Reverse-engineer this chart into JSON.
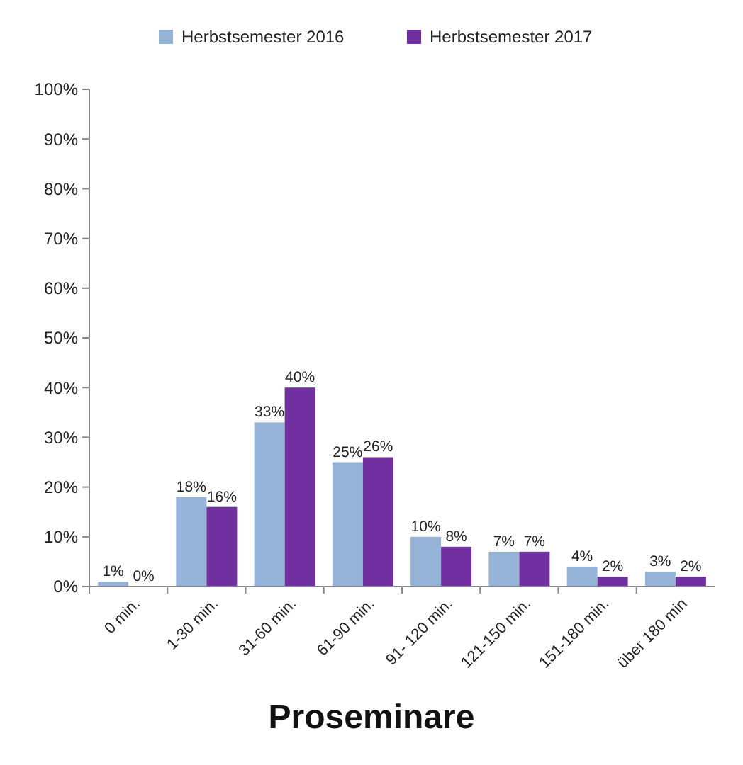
{
  "chart_data": {
    "type": "bar",
    "title": "Proseminare",
    "categories": [
      "0 min.",
      "1-30 min.",
      "31-60 min.",
      "61-90 min.",
      "91- 120 min.",
      "121-150 min.",
      "151-180 min.",
      "über 180 min"
    ],
    "series": [
      {
        "name": "Herbstsemester 2016",
        "color": "#95b3d7",
        "values": [
          1,
          18,
          33,
          25,
          10,
          7,
          4,
          3
        ],
        "value_labels": [
          "1%",
          "18%",
          "33%",
          "25%",
          "10%",
          "7%",
          "4%",
          "3%"
        ]
      },
      {
        "name": "Herbstsemester 2017",
        "color": "#7030a0",
        "values": [
          0,
          16,
          40,
          26,
          8,
          7,
          2,
          2
        ],
        "value_labels": [
          "0%",
          "16%",
          "40%",
          "26%",
          "8%",
          "7%",
          "2%",
          "2%"
        ]
      }
    ],
    "ylim": [
      0,
      100
    ],
    "yticks": [
      {
        "value": 0,
        "label": "0%"
      },
      {
        "value": 10,
        "label": "10%"
      },
      {
        "value": 20,
        "label": "20%"
      },
      {
        "value": 30,
        "label": "30%"
      },
      {
        "value": 40,
        "label": "40%"
      },
      {
        "value": 50,
        "label": "50%"
      },
      {
        "value": 60,
        "label": "60%"
      },
      {
        "value": 70,
        "label": "70%"
      },
      {
        "value": 80,
        "label": "80%"
      },
      {
        "value": 90,
        "label": "90%"
      },
      {
        "value": 100,
        "label": "100%"
      }
    ],
    "legend": "top"
  }
}
